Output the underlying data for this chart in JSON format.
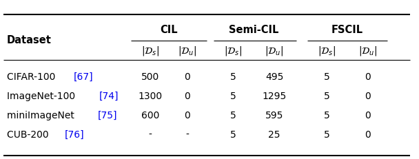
{
  "rows": [
    [
      "CIFAR-100 ",
      "[67]",
      "500",
      "0",
      "5",
      "495",
      "5",
      "0"
    ],
    [
      "ImageNet-100 ",
      "[74]",
      "1300",
      "0",
      "5",
      "1295",
      "5",
      "0"
    ],
    [
      "miniImageNet ",
      "[75]",
      "600",
      "0",
      "5",
      "595",
      "5",
      "0"
    ],
    [
      "CUB-200 ",
      "[76]",
      "-",
      "-",
      "5",
      "25",
      "5",
      "0"
    ]
  ],
  "citation_color": "#0000EE",
  "text_color": "#000000",
  "bg_color": "#FFFFFF",
  "ds_label": "$|\\mathcal{D}_s|$",
  "du_label": "$|\\mathcal{D}_u|$"
}
